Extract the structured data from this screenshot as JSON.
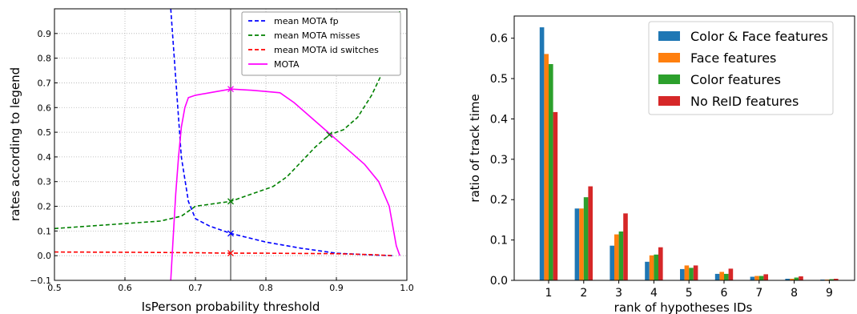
{
  "chart_data": [
    {
      "type": "line",
      "title": "",
      "xlabel": "IsPerson probability threshold",
      "ylabel": "rates according to legend",
      "xlim": [
        0.5,
        1.0
      ],
      "ylim": [
        -0.1,
        1.0
      ],
      "xticks": [
        0.5,
        0.6,
        0.7,
        0.8,
        0.9,
        1.0
      ],
      "xtick_labels": [
        "0.5",
        "0.6",
        "0.7",
        "0.8",
        "0.9",
        "1.0"
      ],
      "yticks": [
        -0.1,
        0.0,
        0.1,
        0.2,
        0.3,
        0.4,
        0.5,
        0.6,
        0.7,
        0.8,
        0.9
      ],
      "ytick_labels": [
        "−0.1",
        "0.0",
        "0.1",
        "0.2",
        "0.3",
        "0.4",
        "0.5",
        "0.6",
        "0.7",
        "0.8",
        "0.9"
      ],
      "grid": true,
      "legend_position": "top-right",
      "vline_x": 0.75,
      "series": [
        {
          "name": "mean MOTA fp",
          "color": "#0000ff",
          "style": "dashed",
          "x": [
            0.665,
            0.675,
            0.68,
            0.69,
            0.7,
            0.72,
            0.75,
            0.8,
            0.85,
            0.9,
            0.95,
            0.98
          ],
          "y": [
            1.0,
            0.6,
            0.4,
            0.22,
            0.15,
            0.12,
            0.09,
            0.055,
            0.03,
            0.01,
            0.003,
            0.0
          ]
        },
        {
          "name": "mean MOTA misses",
          "color": "#008000",
          "style": "dashed",
          "x": [
            0.5,
            0.55,
            0.6,
            0.65,
            0.68,
            0.7,
            0.75,
            0.78,
            0.81,
            0.83,
            0.85,
            0.87,
            0.89,
            0.91,
            0.93,
            0.95,
            0.97,
            0.99
          ],
          "y": [
            0.11,
            0.12,
            0.13,
            0.14,
            0.16,
            0.2,
            0.22,
            0.25,
            0.28,
            0.32,
            0.38,
            0.44,
            0.49,
            0.51,
            0.56,
            0.65,
            0.77,
            0.99
          ]
        },
        {
          "name": "mean MOTA id switches",
          "color": "#ff0000",
          "style": "dashed",
          "x": [
            0.5,
            0.6,
            0.7,
            0.75,
            0.8,
            0.9,
            0.95,
            0.98
          ],
          "y": [
            0.015,
            0.014,
            0.012,
            0.01,
            0.01,
            0.008,
            0.004,
            0.0
          ]
        },
        {
          "name": "MOTA",
          "color": "#ff00ff",
          "style": "solid",
          "x": [
            0.665,
            0.668,
            0.672,
            0.676,
            0.68,
            0.685,
            0.69,
            0.7,
            0.72,
            0.75,
            0.78,
            0.8,
            0.82,
            0.84,
            0.86,
            0.88,
            0.9,
            0.92,
            0.94,
            0.96,
            0.975,
            0.985,
            0.99
          ],
          "y": [
            -0.1,
            0.05,
            0.25,
            0.4,
            0.52,
            0.6,
            0.64,
            0.65,
            0.66,
            0.675,
            0.67,
            0.665,
            0.66,
            0.62,
            0.57,
            0.52,
            0.47,
            0.42,
            0.37,
            0.3,
            0.2,
            0.04,
            0.0
          ]
        }
      ],
      "markers": [
        {
          "x": 0.75,
          "y": 0.09,
          "color": "#0000ff"
        },
        {
          "x": 0.75,
          "y": 0.22,
          "color": "#008000"
        },
        {
          "x": 0.75,
          "y": 0.01,
          "color": "#ff0000"
        },
        {
          "x": 0.75,
          "y": 0.675,
          "color": "#ff00ff"
        },
        {
          "x": 0.89,
          "y": 0.49,
          "color": "#008000"
        }
      ]
    },
    {
      "type": "bar",
      "title": "",
      "xlabel": "rank of hypotheses IDs",
      "ylabel": "ratio of track time",
      "categories": [
        "1",
        "2",
        "3",
        "4",
        "5",
        "6",
        "7",
        "8",
        "9"
      ],
      "ylim": [
        0,
        0.655
      ],
      "yticks": [
        0.0,
        0.1,
        0.2,
        0.3,
        0.4,
        0.5,
        0.6
      ],
      "ytick_labels": [
        "0.0",
        "0.1",
        "0.2",
        "0.3",
        "0.4",
        "0.5",
        "0.6"
      ],
      "grid": false,
      "legend_position": "top-right",
      "series": [
        {
          "name": "Color & Face features",
          "color": "#1f77b4",
          "values": [
            0.627,
            0.178,
            0.086,
            0.046,
            0.028,
            0.016,
            0.009,
            0.004,
            0.002
          ]
        },
        {
          "name": "Face features",
          "color": "#ff7f0e",
          "values": [
            0.561,
            0.178,
            0.114,
            0.062,
            0.037,
            0.021,
            0.011,
            0.004,
            0.002
          ]
        },
        {
          "name": "Color features",
          "color": "#2ca02c",
          "values": [
            0.536,
            0.206,
            0.121,
            0.064,
            0.031,
            0.016,
            0.011,
            0.007,
            0.003
          ]
        },
        {
          "name": "No ReID features",
          "color": "#d62728",
          "values": [
            0.417,
            0.233,
            0.166,
            0.082,
            0.037,
            0.029,
            0.015,
            0.01,
            0.004
          ]
        }
      ]
    }
  ]
}
